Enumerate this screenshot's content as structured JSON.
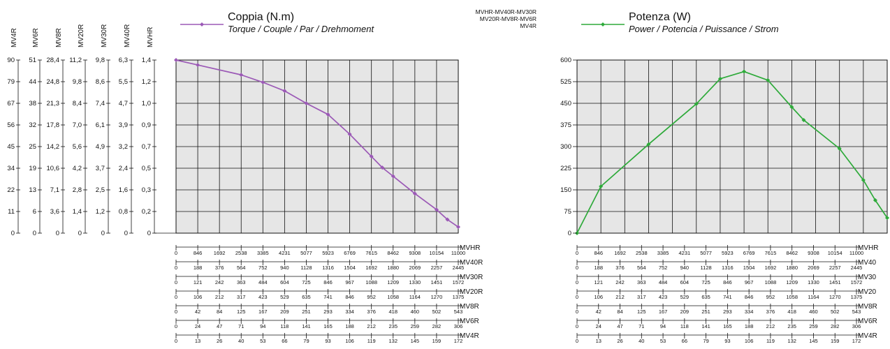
{
  "left_y_axes": [
    {
      "name": "MV4R",
      "ticks": [
        "90",
        "79",
        "67",
        "56",
        "45",
        "34",
        "22",
        "11",
        "0"
      ]
    },
    {
      "name": "MV6R",
      "ticks": [
        "51",
        "44",
        "38",
        "32",
        "25",
        "19",
        "13",
        "6",
        "0"
      ]
    },
    {
      "name": "MV8R",
      "ticks": [
        "28,4",
        "24,8",
        "21,3",
        "17,8",
        "14,2",
        "10,6",
        "7,1",
        "3,6",
        "0"
      ]
    },
    {
      "name": "MV20R",
      "ticks": [
        "11,2",
        "9,8",
        "8,4",
        "7,0",
        "5,6",
        "4,2",
        "2,8",
        "1,4",
        "0"
      ]
    },
    {
      "name": "MV30R",
      "ticks": [
        "9,8",
        "8,6",
        "7,4",
        "6,1",
        "4,9",
        "3,7",
        "2,5",
        "1,2",
        "0"
      ]
    },
    {
      "name": "MV40R",
      "ticks": [
        "6,3",
        "5,5",
        "4,7",
        "3,9",
        "3,2",
        "2,4",
        "1,6",
        "0,8",
        "0"
      ]
    },
    {
      "name": "MVHR",
      "ticks": [
        "1,4",
        "1,2",
        "1,0",
        "0,9",
        "0,7",
        "0,5",
        "0,3",
        "0,2",
        "0"
      ]
    }
  ],
  "x_axes": [
    {
      "name": "MVHR",
      "ticks": [
        "0",
        "846",
        "1692",
        "2538",
        "3385",
        "4231",
        "5077",
        "5923",
        "6769",
        "7615",
        "8462",
        "9308",
        "10154",
        "11000"
      ]
    },
    {
      "name": "MV40R",
      "ticks": [
        "0",
        "188",
        "376",
        "564",
        "752",
        "940",
        "1128",
        "1316",
        "1504",
        "1692",
        "1880",
        "2069",
        "2257",
        "2445"
      ]
    },
    {
      "name": "MV30R",
      "ticks": [
        "0",
        "121",
        "242",
        "363",
        "484",
        "604",
        "725",
        "846",
        "967",
        "1088",
        "1209",
        "1330",
        "1451",
        "1572"
      ]
    },
    {
      "name": "MV20R",
      "ticks": [
        "0",
        "106",
        "212",
        "317",
        "423",
        "529",
        "635",
        "741",
        "846",
        "952",
        "1058",
        "1164",
        "1270",
        "1375"
      ]
    },
    {
      "name": "MV8R",
      "ticks": [
        "0",
        "42",
        "84",
        "125",
        "167",
        "209",
        "251",
        "293",
        "334",
        "376",
        "418",
        "460",
        "502",
        "543"
      ]
    },
    {
      "name": "MV6R",
      "ticks": [
        "0",
        "24",
        "47",
        "71",
        "94",
        "118",
        "141",
        "165",
        "188",
        "212",
        "235",
        "259",
        "282",
        "306"
      ]
    },
    {
      "name": "MV4R",
      "ticks": [
        "0",
        "13",
        "26",
        "40",
        "53",
        "66",
        "79",
        "93",
        "106",
        "119",
        "132",
        "145",
        "159",
        "172"
      ]
    }
  ],
  "right_x_axis_names": [
    "MVHR",
    "MV40",
    "MV30",
    "MV20",
    "MV8R",
    "MV6R",
    "MV4R"
  ],
  "power_series_label": [
    "MVHR-MV40R-MV30R",
    "MV20R-MV8R-MV6R",
    "MV4R"
  ],
  "chart_data": [
    {
      "type": "line",
      "title": "Coppia (N.m)",
      "subtitle": "Torque / Couple / Par / Drehmoment",
      "xlim": [
        0,
        11000
      ],
      "ylim": [
        0,
        1.4
      ],
      "grid": true,
      "color": "#9b59b6",
      "series": [
        {
          "name": "Coppia (N.m)",
          "x": [
            0,
            846,
            2538,
            3385,
            4231,
            5077,
            5923,
            6769,
            7615,
            8039,
            8462,
            9308,
            10154,
            10577,
            11000
          ],
          "y": [
            1.4,
            1.36,
            1.28,
            1.22,
            1.15,
            1.05,
            0.96,
            0.8,
            0.62,
            0.53,
            0.46,
            0.32,
            0.19,
            0.11,
            0.05
          ]
        }
      ]
    },
    {
      "type": "line",
      "title": "Potenza (W)",
      "subtitle": "Power / Potencia / Puissance / Strom",
      "xlim": [
        0,
        11000
      ],
      "ylim": [
        0,
        600
      ],
      "yticks": [
        "600",
        "525",
        "450",
        "375",
        "300",
        "225",
        "150",
        "75",
        "0"
      ],
      "grid": true,
      "color": "#2eaa3a",
      "series": [
        {
          "name": "Potenza (W)",
          "x": [
            0,
            846,
            2538,
            4231,
            5077,
            5923,
            6769,
            7615,
            8039,
            9308,
            10154,
            10577,
            11000
          ],
          "y": [
            0,
            162,
            308,
            448,
            535,
            560,
            530,
            437,
            392,
            293,
            184,
            114,
            53
          ]
        }
      ]
    }
  ]
}
